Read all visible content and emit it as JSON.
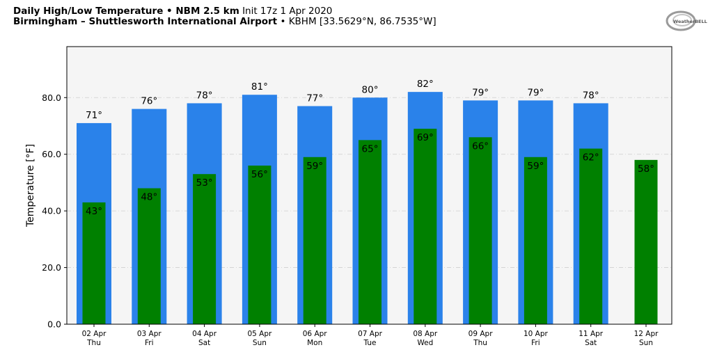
{
  "header": {
    "title_bold": "Daily High/Low Temperature • NBM 2.5 km",
    "title_init": "Init 17z 1 Apr 2020",
    "station_bold": "Birmingham – Shuttlesworth International Airport",
    "station_info": "• KBHM [33.5629°N, 86.7535°W]"
  },
  "logo": {
    "icon": "weatherbell-logo",
    "text": "WeatherBELL"
  },
  "colors": {
    "high_bar": "#2a82ea",
    "low_bar": "#008000",
    "plot_background": "#f5f5f5"
  },
  "chart_data": {
    "type": "bar",
    "title": "Daily High/Low Temperature • NBM 2.5 km",
    "xlabel": "",
    "ylabel": "Temperature [°F]",
    "ylim": [
      0,
      98
    ],
    "yticks": [
      "0.0",
      "20.0",
      "40.0",
      "60.0",
      "80.0"
    ],
    "ytick_values": [
      0,
      20,
      40,
      60,
      80
    ],
    "grid": true,
    "categories": [
      "02 Apr",
      "03 Apr",
      "04 Apr",
      "05 Apr",
      "06 Apr",
      "07 Apr",
      "08 Apr",
      "09 Apr",
      "10 Apr",
      "11 Apr",
      "12 Apr"
    ],
    "weekdays": [
      "Thu",
      "Fri",
      "Sat",
      "Sun",
      "Mon",
      "Tue",
      "Wed",
      "Thu",
      "Fri",
      "Sat",
      "Sun"
    ],
    "series": [
      {
        "values": [
          71,
          76,
          78,
          81,
          77,
          80,
          82,
          79,
          79,
          78,
          null
        ],
        "labels": [
          "71°",
          "76°",
          "78°",
          "81°",
          "77°",
          "80°",
          "82°",
          "79°",
          "79°",
          "78°",
          ""
        ]
      },
      {
        "values": [
          43,
          48,
          53,
          56,
          59,
          65,
          69,
          66,
          59,
          62,
          58
        ],
        "labels": [
          "43°",
          "48°",
          "53°",
          "56°",
          "59°",
          "65°",
          "69°",
          "66°",
          "59°",
          "62°",
          "58°"
        ]
      }
    ]
  }
}
